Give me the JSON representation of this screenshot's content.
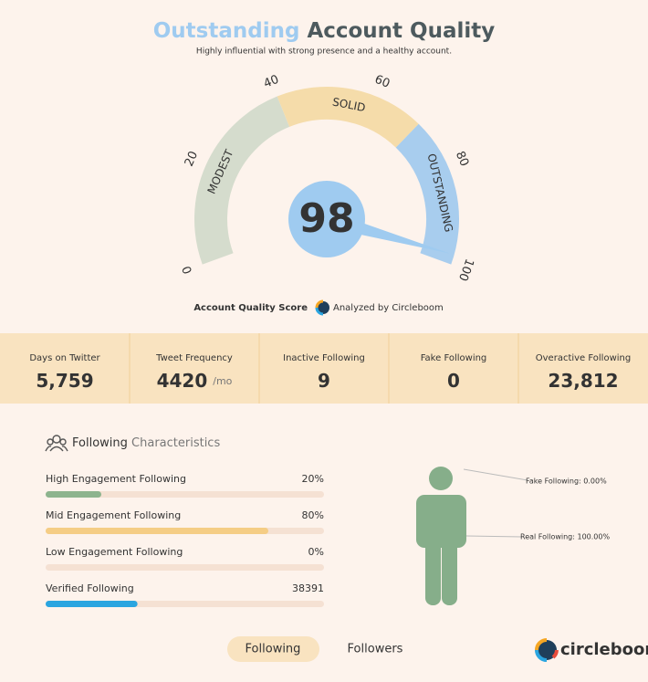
{
  "header": {
    "title_highlight": "Outstanding",
    "title_rest": "Account Quality",
    "subtitle": "Highly influential with strong presence and a healthy account."
  },
  "gauge": {
    "score": 98,
    "min": 0,
    "max": 100,
    "ticks": [
      0,
      20,
      40,
      60,
      80,
      100
    ],
    "bands": [
      {
        "label": "MODEST",
        "from": 0,
        "to": 40,
        "color": "#d5dccd"
      },
      {
        "label": "SOLID",
        "from": 40,
        "to": 70,
        "color": "#f5dcaa"
      },
      {
        "label": "OUTSTANDING",
        "from": 70,
        "to": 100,
        "color": "#a8cdee"
      }
    ],
    "caption": "Account Quality Score",
    "analyzed": "Analyzed by Circleboom"
  },
  "stats": [
    {
      "label": "Days on Twitter",
      "value": "5,759"
    },
    {
      "label": "Tweet Frequency",
      "value": 4420,
      "unit": "/mo"
    },
    {
      "label": "Inactive Following",
      "value": 9
    },
    {
      "label": "Fake Following",
      "value": 0
    },
    {
      "label": "Overactive Following",
      "value": "23,812"
    }
  ],
  "characteristics": {
    "title_bold": "Following",
    "title_rest": "Characteristics",
    "bars": [
      {
        "label": "High Engagement Following",
        "value": 20,
        "value_label": "20%",
        "color": "#8db48e"
      },
      {
        "label": "Mid Engagement Following",
        "value": 80,
        "value_label": "80%",
        "color": "#f5cd85"
      },
      {
        "label": "Low Engagement Following",
        "value": 0,
        "value_label": "0%",
        "color": "#e57373"
      },
      {
        "label": "Verified Following",
        "value": 38391,
        "fill_percent": 33,
        "color": "#2aa5e0"
      }
    ],
    "fake_label": "Fake Following: 0.00%",
    "real_label": "Real Following: 100.00%"
  },
  "tabs": [
    "Following",
    "Followers"
  ],
  "logo": "circleboom"
}
